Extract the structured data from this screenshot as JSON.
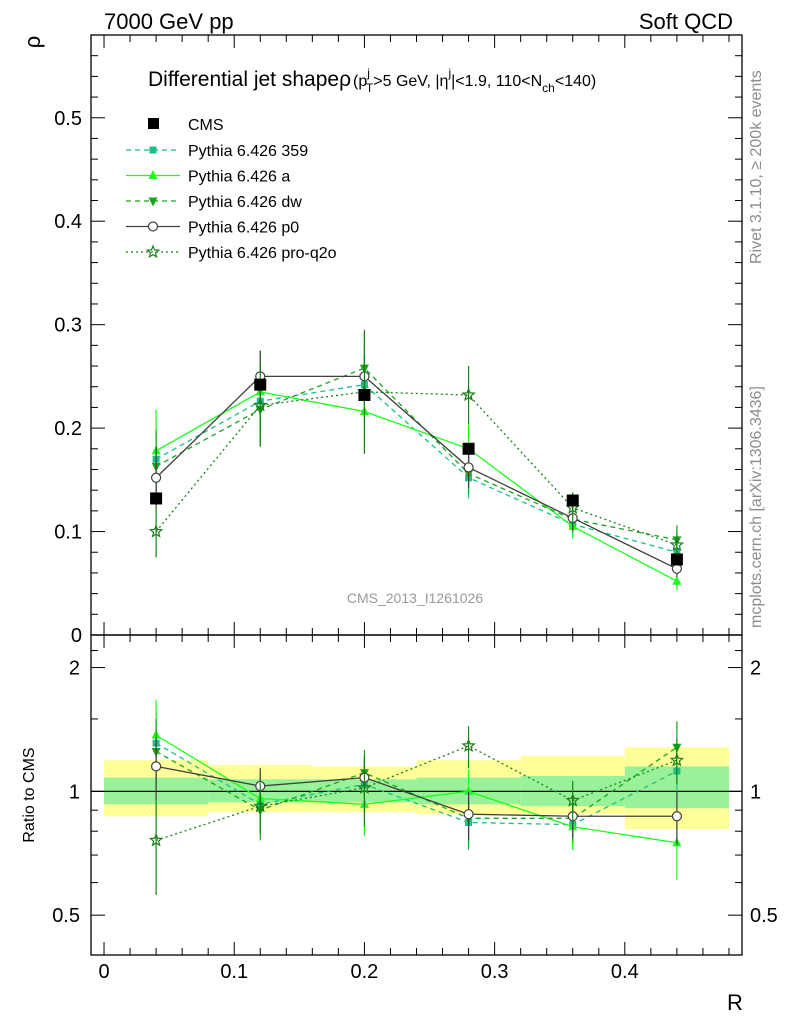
{
  "header": {
    "left": "7000 GeV pp",
    "right": "Soft QCD"
  },
  "side_labels": {
    "rivet": "Rivet 3.1.10, ≥ 200k events",
    "mcplots": "mcplots.cern.ch [arXiv:1306.3436]"
  },
  "watermark": "CMS_2013_I1261026",
  "chart_data": {
    "type": "line",
    "title": {
      "main": "Differential jet shape",
      "rho": "ρ",
      "open": "(p",
      "pt_sup": "j",
      "pt_sub": "T",
      "cut1": ">5 GeV, |η",
      "eta_sup": "j",
      "cut2": "|<1.9, 110<N",
      "n_sub": "ch",
      "cut3": "<140)"
    },
    "xlabel": "R",
    "ylabel_main": "ρ",
    "ylabel_ratio": "Ratio to CMS",
    "xlim": [
      -0.01,
      0.49
    ],
    "ylim_main": [
      0,
      0.58
    ],
    "ylim_ratio": [
      0.4,
      2.4
    ],
    "x_ticks": [
      "0",
      "0.1",
      "0.2",
      "0.3",
      "0.4"
    ],
    "y_ticks_main": [
      "0",
      "0.1",
      "0.2",
      "0.3",
      "0.4",
      "0.5"
    ],
    "y_ticks_ratio": [
      "0.5",
      "1",
      "2"
    ],
    "x": [
      0.04,
      0.12,
      0.2,
      0.28,
      0.36,
      0.44
    ],
    "bin_edges": [
      0.0,
      0.08,
      0.16,
      0.24,
      0.32,
      0.4,
      0.48
    ],
    "colors": {
      "cms": "#000000",
      "band_stat": "#99f299",
      "band_total": "#ffff99",
      "ratio_line": "#000000"
    },
    "data": {
      "name": "CMS",
      "values": [
        0.132,
        0.242,
        0.232,
        0.18,
        0.13,
        0.073
      ],
      "ratio_band_stat": [
        [
          0.93,
          1.08
        ],
        [
          0.94,
          1.07
        ],
        [
          0.94,
          1.07
        ],
        [
          0.93,
          1.08
        ],
        [
          0.92,
          1.09
        ],
        [
          0.91,
          1.15
        ]
      ],
      "ratio_band_total": [
        [
          0.87,
          1.19
        ],
        [
          0.89,
          1.16
        ],
        [
          0.89,
          1.15
        ],
        [
          0.88,
          1.19
        ],
        [
          0.88,
          1.22
        ],
        [
          0.81,
          1.28
        ]
      ]
    },
    "series": [
      {
        "name": "Pythia 6.426 359",
        "color": "#19bf8c",
        "dash": "5,4",
        "marker": "square-small",
        "values": [
          0.17,
          0.226,
          0.242,
          0.152,
          0.107,
          0.08
        ],
        "errors": [
          0.03,
          0.035,
          0.035,
          0.02,
          0.012,
          0.01
        ],
        "ratio": [
          1.31,
          0.93,
          1.04,
          0.84,
          0.83,
          1.12
        ],
        "ratio_errors": [
          0.25,
          0.13,
          0.14,
          0.12,
          0.11,
          0.14
        ]
      },
      {
        "name": "Pythia 6.426 a",
        "color": "#19ff19",
        "dash": "",
        "marker": "triangle-up",
        "values": [
          0.178,
          0.235,
          0.216,
          0.18,
          0.105,
          0.052
        ],
        "errors": [
          0.04,
          0.04,
          0.035,
          0.025,
          0.012,
          0.009
        ],
        "ratio": [
          1.37,
          0.96,
          0.93,
          1.0,
          0.82,
          0.75
        ],
        "ratio_errors": [
          0.3,
          0.15,
          0.15,
          0.13,
          0.1,
          0.14
        ]
      },
      {
        "name": "Pythia 6.426 dw",
        "color": "#19a519",
        "dash": "5,4",
        "marker": "triangle-down",
        "values": [
          0.163,
          0.218,
          0.258,
          0.156,
          0.112,
          0.092
        ],
        "errors": [
          0.035,
          0.035,
          0.035,
          0.02,
          0.013,
          0.014
        ],
        "ratio": [
          1.25,
          0.9,
          1.11,
          0.86,
          0.86,
          1.28
        ],
        "ratio_errors": [
          0.25,
          0.14,
          0.15,
          0.13,
          0.11,
          0.2
        ]
      },
      {
        "name": "Pythia 6.426 p0",
        "color": "#404040",
        "dash": "",
        "marker": "circle-open",
        "values": [
          0.152,
          0.25,
          0.25,
          0.162,
          0.113,
          0.064
        ],
        "errors": [
          0.03,
          0.025,
          0.02,
          0.02,
          0.012,
          0.008
        ],
        "ratio": [
          1.15,
          1.03,
          1.08,
          0.88,
          0.87,
          0.87
        ],
        "ratio_errors": [
          0.2,
          0.11,
          0.11,
          0.12,
          0.1,
          0.13
        ]
      },
      {
        "name": "Pythia 6.426 pro-q2o",
        "color": "#198019",
        "dash": "2,3",
        "marker": "star",
        "values": [
          0.1,
          0.222,
          0.235,
          0.232,
          0.123,
          0.087
        ],
        "errors": [
          0.025,
          0.04,
          0.06,
          0.028,
          0.015,
          0.012
        ],
        "ratio": [
          0.76,
          0.92,
          1.02,
          1.29,
          0.95,
          1.19
        ],
        "ratio_errors": [
          0.2,
          0.13,
          0.2,
          0.15,
          0.11,
          0.15
        ]
      }
    ]
  }
}
